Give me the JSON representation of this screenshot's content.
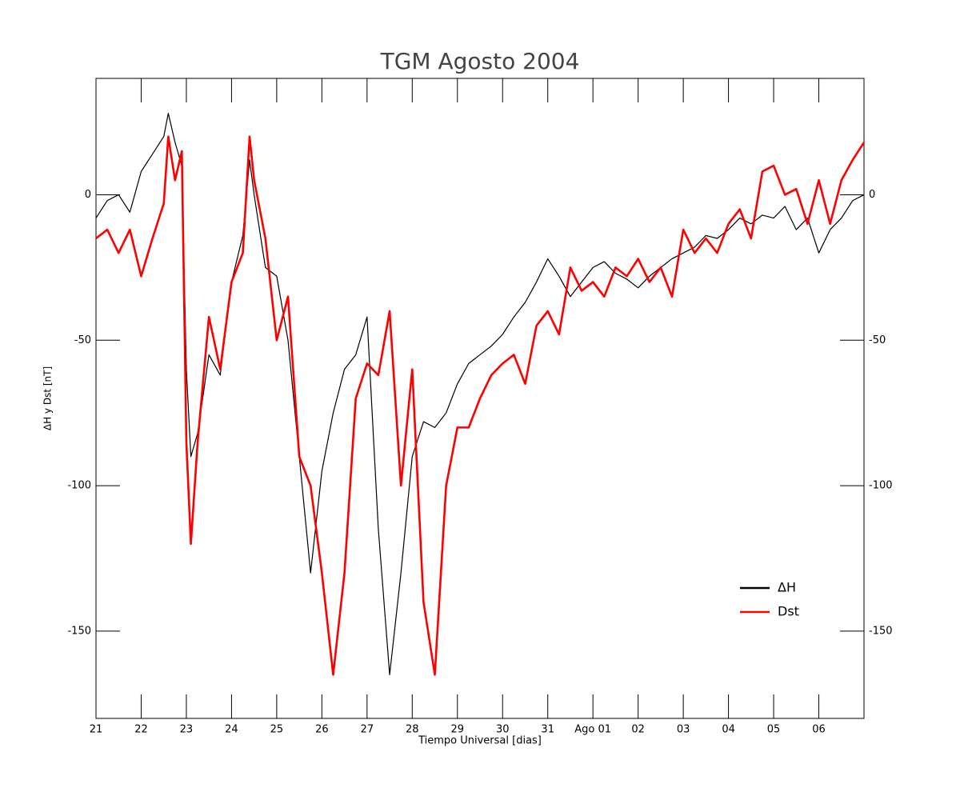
{
  "chart_data": {
    "type": "line",
    "title": "TGM Agosto 2004",
    "xlabel": "Tiempo Universal [dias]",
    "ylabel": "ΔH y Dst [nT]",
    "x": [
      0,
      0.25,
      0.5,
      0.75,
      1,
      1.25,
      1.5,
      1.6,
      1.75,
      1.9,
      2,
      2.1,
      2.25,
      2.5,
      2.75,
      3,
      3.25,
      3.4,
      3.5,
      3.75,
      4,
      4.25,
      4.5,
      4.75,
      5,
      5.25,
      5.5,
      5.75,
      6,
      6.25,
      6.5,
      6.75,
      7,
      7.25,
      7.5,
      7.75,
      8,
      8.25,
      8.5,
      8.75,
      9,
      9.25,
      9.5,
      9.75,
      10,
      10.25,
      10.5,
      10.75,
      11,
      11.25,
      11.5,
      11.75,
      12,
      12.25,
      12.5,
      12.75,
      13,
      13.25,
      13.5,
      13.75,
      14,
      14.25,
      14.5,
      14.75,
      15,
      15.25,
      15.5,
      15.75,
      16,
      16.25,
      16.5,
      16.75,
      17
    ],
    "series": [
      {
        "name": "ΔH",
        "color": "#000000",
        "values": [
          -8,
          -2,
          0,
          -6,
          8,
          14,
          20,
          28,
          18,
          10,
          -60,
          -90,
          -82,
          -55,
          -62,
          -30,
          -14,
          12,
          0,
          -25,
          -28,
          -50,
          -90,
          -130,
          -95,
          -75,
          -60,
          -55,
          -42,
          -115,
          -165,
          -130,
          -90,
          -78,
          -80,
          -75,
          -65,
          -58,
          -55,
          -52,
          -48,
          -42,
          -37,
          -30,
          -22,
          -28,
          -35,
          -30,
          -25,
          -23,
          -27,
          -29,
          -32,
          -28,
          -25,
          -22,
          -20,
          -18,
          -14,
          -15,
          -12,
          -8,
          -10,
          -7,
          -8,
          -4,
          -12,
          -8,
          -20,
          -12,
          -8,
          -2,
          0
        ]
      },
      {
        "name": "Dst",
        "color": "#ff0000",
        "values": [
          -15,
          -12,
          -20,
          -12,
          -28,
          -15,
          -3,
          20,
          5,
          15,
          -85,
          -120,
          -85,
          -42,
          -60,
          -30,
          -20,
          20,
          5,
          -15,
          -50,
          -35,
          -90,
          -100,
          -130,
          -165,
          -130,
          -70,
          -58,
          -62,
          -40,
          -100,
          -60,
          -140,
          -165,
          -100,
          -80,
          -80,
          -70,
          -62,
          -58,
          -55,
          -65,
          -45,
          -40,
          -48,
          -25,
          -33,
          -30,
          -35,
          -25,
          -28,
          -22,
          -30,
          -25,
          -35,
          -12,
          -20,
          -15,
          -20,
          -10,
          -5,
          -15,
          8,
          10,
          0,
          2,
          -10,
          5,
          -10,
          5,
          12,
          18
        ]
      }
    ],
    "xlim": [
      0,
      17
    ],
    "xticks": [
      {
        "value": 0,
        "label": "21"
      },
      {
        "value": 1,
        "label": "22"
      },
      {
        "value": 2,
        "label": "23"
      },
      {
        "value": 3,
        "label": "24"
      },
      {
        "value": 4,
        "label": "25"
      },
      {
        "value": 5,
        "label": "26"
      },
      {
        "value": 6,
        "label": "27"
      },
      {
        "value": 7,
        "label": "28"
      },
      {
        "value": 8,
        "label": "29"
      },
      {
        "value": 9,
        "label": "30"
      },
      {
        "value": 10,
        "label": "31"
      },
      {
        "value": 11,
        "label": "Ago 01"
      },
      {
        "value": 12,
        "label": "02"
      },
      {
        "value": 13,
        "label": "03"
      },
      {
        "value": 14,
        "label": "04"
      },
      {
        "value": 15,
        "label": "05"
      },
      {
        "value": 16,
        "label": "06"
      }
    ],
    "ylim": [
      -180,
      40
    ],
    "yticks": [
      -150,
      -100,
      -50,
      0
    ],
    "legend": "lower-right"
  }
}
